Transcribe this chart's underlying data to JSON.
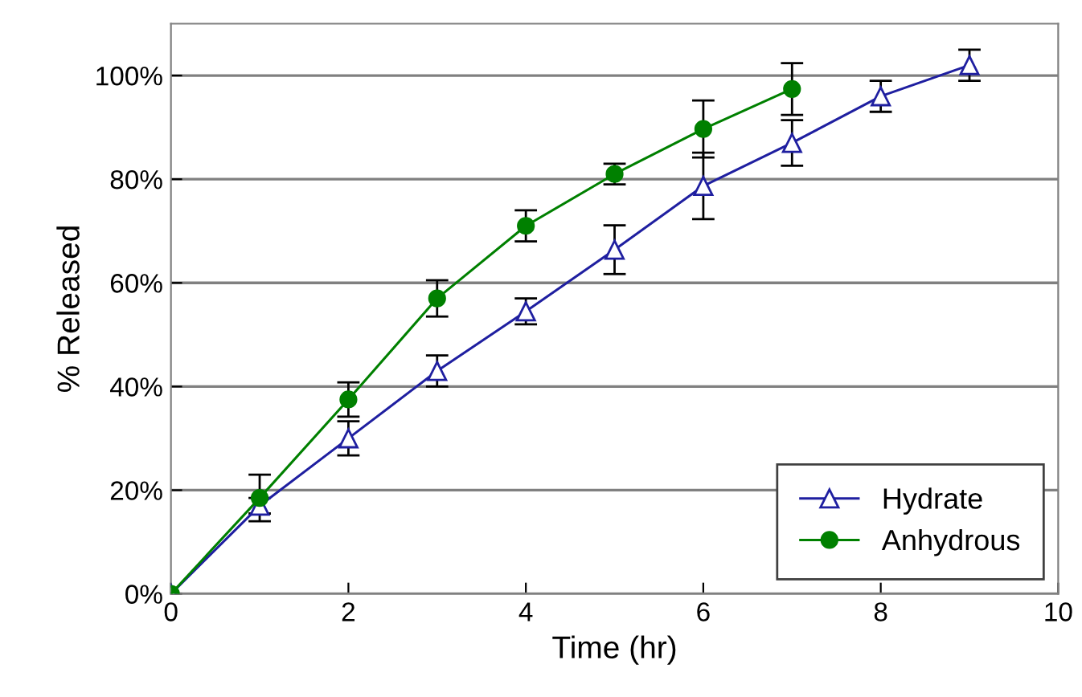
{
  "chart_data": {
    "type": "line",
    "xlabel": "Time (hr)",
    "ylabel": "% Released",
    "xlim": [
      0,
      10
    ],
    "xticks": [
      0,
      2,
      4,
      6,
      8,
      10
    ],
    "ylim": [
      0,
      110
    ],
    "yticks": [
      {
        "value": 0,
        "label": "0%"
      },
      {
        "value": 20,
        "label": "20%"
      },
      {
        "value": 40,
        "label": "40%"
      },
      {
        "value": 60,
        "label": "60%"
      },
      {
        "value": 80,
        "label": "80%"
      },
      {
        "value": 100,
        "label": "100%"
      }
    ],
    "grid": "y",
    "legend": "bottom right",
    "series": [
      {
        "name": "Hydrate",
        "color": "#1f1fa0",
        "marker": "triangle",
        "x": [
          0,
          1,
          2,
          3,
          4,
          5,
          6,
          7,
          8,
          9
        ],
        "values": [
          0,
          17,
          30,
          43,
          54.5,
          66.4,
          78.7,
          87,
          96,
          102
        ],
        "errors": [
          null,
          1.5,
          3.3,
          3,
          2.5,
          4.7,
          6.4,
          4.4,
          3,
          3
        ]
      },
      {
        "name": "Anhydrous",
        "color": "#008000",
        "marker": "circle",
        "x": [
          0,
          1,
          2,
          3,
          4,
          5,
          6,
          7
        ],
        "values": [
          0,
          18.5,
          37.5,
          57,
          71,
          81,
          89.7,
          97.4
        ],
        "errors": [
          null,
          4.5,
          3.3,
          3.5,
          3,
          2,
          5.5,
          5
        ]
      }
    ]
  }
}
